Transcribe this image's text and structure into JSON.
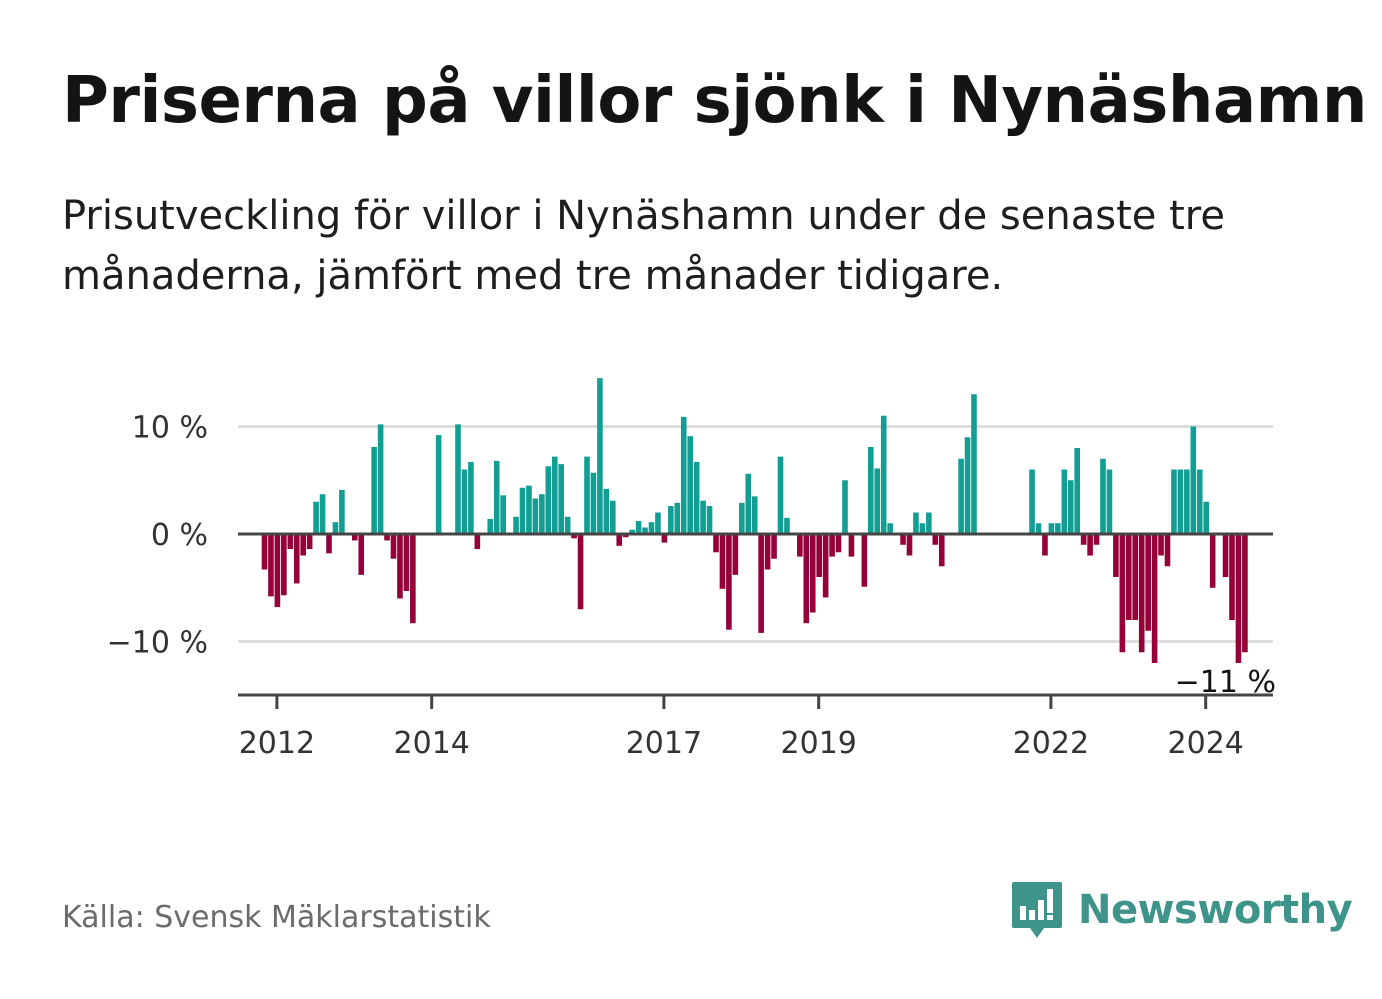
{
  "header": {
    "title": "Priserna på villor sjönk i Nynäshamn",
    "subtitle": "Prisutveckling för villor i Nynäshamn under de senaste tre månaderna, jämfört med tre månader tidigare."
  },
  "footer": {
    "source": "Källa: Svensk Mäklarstatistik",
    "brand": "Newsworthy",
    "brand_icon": "newsworthy-logo-icon"
  },
  "colors": {
    "positive": "#139e94",
    "negative": "#940037",
    "grid": "#dddddd",
    "axis": "#444444",
    "brand": "#3e948a"
  },
  "chart_data": {
    "type": "bar",
    "title": "Priserna på villor sjönk i Nynäshamn",
    "xlabel": "",
    "ylabel": "",
    "ylim": [
      -15,
      15
    ],
    "y_ticks": [
      {
        "value": 10,
        "label": "10 %"
      },
      {
        "value": 0,
        "label": "0 %"
      },
      {
        "value": -10,
        "label": "−10 %"
      }
    ],
    "x_ticks": [
      {
        "month_index": 0,
        "label": "2012"
      },
      {
        "month_index": 24,
        "label": "2014"
      },
      {
        "month_index": 60,
        "label": "2017"
      },
      {
        "month_index": 84,
        "label": "2019"
      },
      {
        "month_index": 120,
        "label": "2022"
      },
      {
        "month_index": 144,
        "label": "2024"
      }
    ],
    "x_start": "2011-11",
    "last_value_label": "−11 %",
    "values": [
      -3.3,
      -5.8,
      -6.8,
      -5.7,
      -1.4,
      -4.6,
      -2.0,
      -1.4,
      3.0,
      3.7,
      -1.8,
      1.1,
      4.1,
      null,
      -0.6,
      -3.8,
      null,
      8.1,
      10.2,
      -0.6,
      -2.3,
      -6.0,
      -5.3,
      -8.3,
      null,
      null,
      null,
      9.2,
      null,
      null,
      10.2,
      6.0,
      6.7,
      -1.4,
      null,
      1.4,
      6.8,
      3.6,
      null,
      1.6,
      4.3,
      4.5,
      3.3,
      3.7,
      6.3,
      7.2,
      6.5,
      1.6,
      -0.4,
      -7.0,
      7.2,
      5.7,
      14.5,
      4.2,
      3.1,
      -1.1,
      -0.3,
      0.4,
      1.2,
      0.6,
      1.1,
      2.0,
      -0.8,
      2.6,
      2.9,
      10.9,
      9.1,
      6.7,
      3.1,
      2.6,
      -1.7,
      -5.1,
      -8.9,
      -3.8,
      2.9,
      5.6,
      3.5,
      -9.2,
      -3.3,
      -2.3,
      7.2,
      1.5,
      null,
      -2.1,
      -8.3,
      -7.3,
      -4.0,
      -5.9,
      -2.1,
      -1.7,
      5.0,
      -2.1,
      null,
      -4.9,
      8.1,
      6.1,
      11.0,
      1.0,
      null,
      -1.0,
      -2.0,
      2.0,
      1.0,
      2.0,
      -1.0,
      -3.0,
      null,
      null,
      7.0,
      9.0,
      13.0,
      null,
      null,
      null,
      null,
      null,
      null,
      null,
      null,
      6.0,
      1.0,
      -2.0,
      1.0,
      1.0,
      6.0,
      5.0,
      8.0,
      -1.0,
      -2.0,
      -1.0,
      7.0,
      6.0,
      -4.0,
      -11.0,
      -8.0,
      -8.0,
      -11.0,
      -9.0,
      -12.0,
      -2.0,
      -3.0,
      6.0,
      6.0,
      6.0,
      10.0,
      6.0,
      3.0,
      -5.0,
      null,
      -4.0,
      -8.0,
      -12.0,
      -11.0
    ]
  }
}
